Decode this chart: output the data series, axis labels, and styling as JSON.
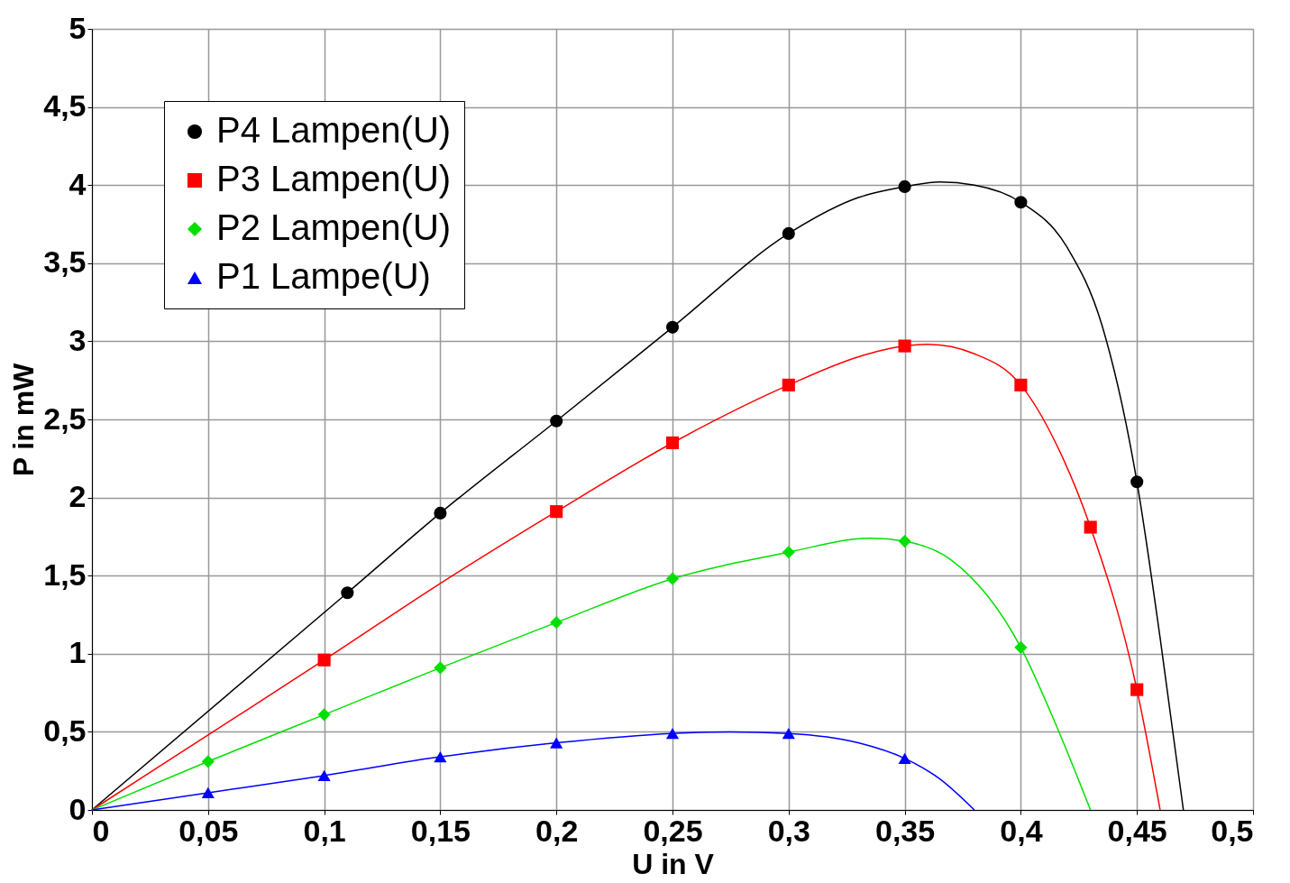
{
  "chart_data": {
    "type": "scatter",
    "xlabel": "U in V",
    "ylabel": "P in mW",
    "xlim": [
      0,
      0.5
    ],
    "ylim": [
      0,
      5
    ],
    "xticks": [
      0,
      {
        "value": 0.05,
        "label": "0,05"
      },
      {
        "value": 0.1,
        "label": "0,1"
      },
      {
        "value": 0.15,
        "label": "0,15"
      },
      {
        "value": 0.2,
        "label": "0,2"
      },
      {
        "value": 0.25,
        "label": "0,25"
      },
      {
        "value": 0.3,
        "label": "0,3"
      },
      {
        "value": 0.35,
        "label": "0,35"
      },
      {
        "value": 0.4,
        "label": "0,4"
      },
      {
        "value": 0.45,
        "label": "0,45"
      },
      {
        "value": 0.5,
        "label": "0,5"
      }
    ],
    "yticks": [
      0,
      {
        "value": 0.5,
        "label": "0,5"
      },
      1,
      {
        "value": 1.5,
        "label": "1,5"
      },
      2,
      {
        "value": 2.5,
        "label": "2,5"
      },
      3,
      {
        "value": 3.5,
        "label": "3,5"
      },
      4,
      {
        "value": 4.5,
        "label": "4,5"
      },
      5
    ],
    "grid": true,
    "legend": "top left",
    "series": [
      {
        "name": "P4 Lampen(U)",
        "marker": "circle",
        "color": "#000000",
        "x": [
          0.11,
          0.15,
          0.2,
          0.25,
          0.3,
          0.35,
          0.4,
          0.45
        ],
        "values": [
          1.39,
          1.9,
          2.49,
          3.09,
          3.69,
          3.99,
          3.89,
          2.1
        ]
      },
      {
        "name": "P3 Lampen(U)",
        "marker": "square",
        "color": "#ff0000",
        "x": [
          0.1,
          0.2,
          0.25,
          0.3,
          0.35,
          0.4,
          0.43,
          0.45
        ],
        "values": [
          0.96,
          1.91,
          2.35,
          2.72,
          2.97,
          2.72,
          1.81,
          0.77
        ]
      },
      {
        "name": "P2 Lampen(U)",
        "marker": "diamond",
        "color": "#00e000",
        "x": [
          0.05,
          0.1,
          0.15,
          0.2,
          0.25,
          0.3,
          0.35,
          0.4
        ],
        "values": [
          0.31,
          0.61,
          0.91,
          1.2,
          1.48,
          1.65,
          1.72,
          1.04
        ]
      },
      {
        "name": "P1 Lampe(U)",
        "marker": "triangle",
        "color": "#0000ff",
        "x": [
          0.05,
          0.1,
          0.15,
          0.2,
          0.25,
          0.3,
          0.35
        ],
        "values": [
          0.11,
          0.22,
          0.34,
          0.43,
          0.49,
          0.49,
          0.33
        ]
      },
      {
        "type": "line",
        "color": "#000000",
        "x": [
          0,
          0.11,
          0.15,
          0.2,
          0.25,
          0.3,
          0.33,
          0.35,
          0.365,
          0.38,
          0.4,
          0.42,
          0.435,
          0.45,
          0.46,
          0.47
        ],
        "values": [
          0,
          1.39,
          1.9,
          2.49,
          3.09,
          3.69,
          3.92,
          3.99,
          4.02,
          4.0,
          3.89,
          3.6,
          3.1,
          2.1,
          1.1,
          0
        ]
      },
      {
        "type": "line",
        "color": "#ff0000",
        "x": [
          0,
          0.05,
          0.1,
          0.15,
          0.2,
          0.25,
          0.3,
          0.33,
          0.35,
          0.36,
          0.38,
          0.4,
          0.415,
          0.43,
          0.45,
          0.46
        ],
        "values": [
          0,
          0.48,
          0.96,
          1.45,
          1.91,
          2.35,
          2.72,
          2.9,
          2.97,
          2.98,
          2.92,
          2.72,
          2.35,
          1.81,
          0.77,
          0
        ]
      },
      {
        "type": "line",
        "color": "#00e000",
        "x": [
          0,
          0.05,
          0.1,
          0.15,
          0.2,
          0.25,
          0.3,
          0.335,
          0.35,
          0.37,
          0.4,
          0.415,
          0.43
        ],
        "values": [
          0,
          0.31,
          0.61,
          0.91,
          1.2,
          1.48,
          1.65,
          1.74,
          1.72,
          1.6,
          1.04,
          0.55,
          0
        ]
      },
      {
        "type": "line",
        "color": "#0000ff",
        "x": [
          0,
          0.05,
          0.1,
          0.15,
          0.2,
          0.25,
          0.275,
          0.3,
          0.33,
          0.35,
          0.365,
          0.38
        ],
        "values": [
          0,
          0.11,
          0.22,
          0.34,
          0.43,
          0.49,
          0.5,
          0.49,
          0.43,
          0.33,
          0.2,
          0
        ]
      }
    ]
  }
}
